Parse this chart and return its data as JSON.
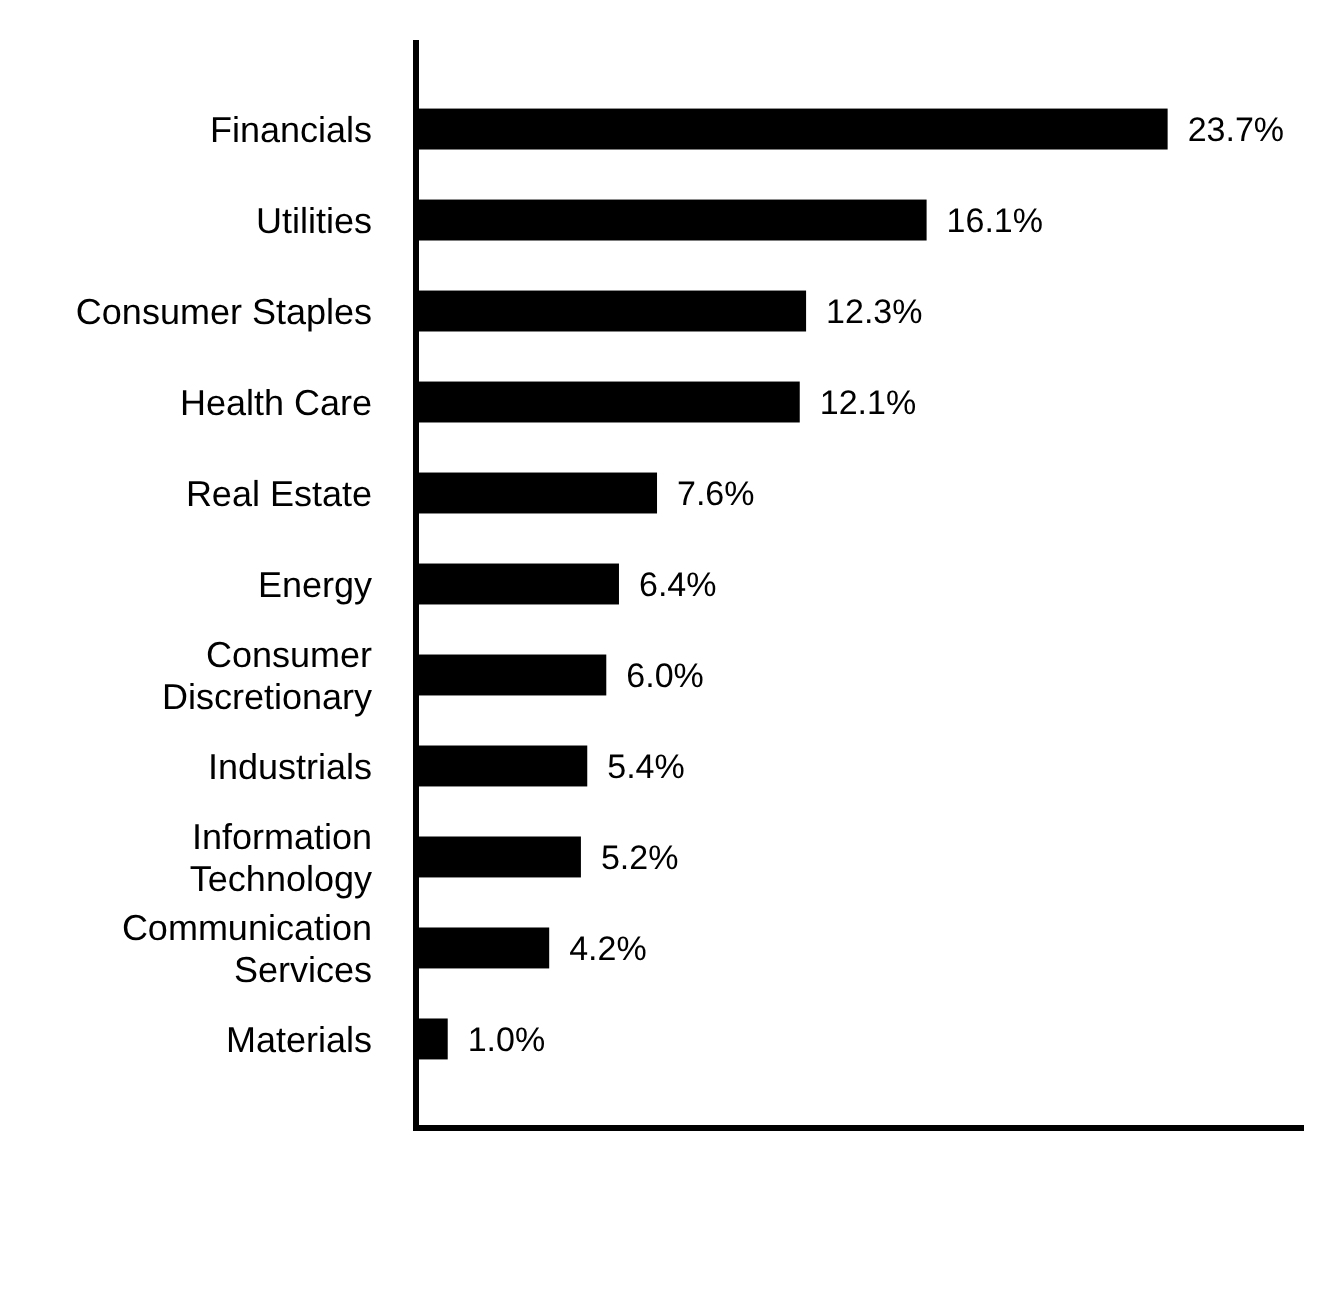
{
  "chart_data": {
    "type": "bar",
    "orientation": "horizontal",
    "categories": [
      "Financials",
      "Utilities",
      "Consumer Staples",
      "Health Care",
      "Real Estate",
      "Energy",
      "Consumer Discretionary",
      "Industrials",
      "Information Technology",
      "Communication Services",
      "Materials"
    ],
    "values": [
      23.7,
      16.1,
      12.3,
      12.1,
      7.6,
      6.4,
      6.0,
      5.4,
      5.2,
      4.2,
      1.0
    ],
    "value_labels": [
      "23.7%",
      "16.1%",
      "12.3%",
      "12.1%",
      "7.6%",
      "6.4%",
      "6.0%",
      "5.4%",
      "5.2%",
      "4.2%",
      "1.0%"
    ],
    "color": "#000000",
    "xlim": [
      0,
      28
    ],
    "tick_labels": "y"
  }
}
